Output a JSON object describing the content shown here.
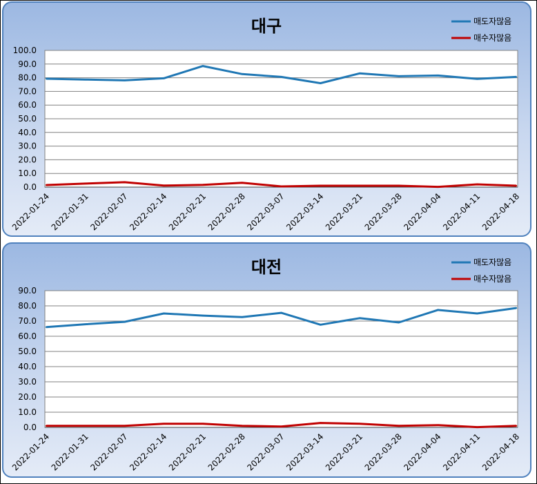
{
  "colors": {
    "sell": "#1f77b4",
    "buy": "#c00000"
  },
  "chart_data": [
    {
      "type": "line",
      "title": "대구",
      "x": [
        "2022-01-24",
        "2022-01-31",
        "2022-02-07",
        "2022-02-14",
        "2022-02-21",
        "2022-02-28",
        "2022-03-07",
        "2022-03-14",
        "2022-03-21",
        "2022-03-28",
        "2022-04-04",
        "2022-04-11",
        "2022-04-18"
      ],
      "yticks": [
        "0.0",
        "10.0",
        "20.0",
        "30.0",
        "40.0",
        "50.0",
        "60.0",
        "70.0",
        "80.0",
        "90.0",
        "100.0"
      ],
      "ylim": [
        0,
        100
      ],
      "grid": true,
      "legend_position": "top-right",
      "series": [
        {
          "name": "매도자많음",
          "color": "#1f77b4",
          "values": [
            79.3,
            78.7,
            78.1,
            79.6,
            88.6,
            82.7,
            80.6,
            76.0,
            83.2,
            81.1,
            81.6,
            79.2,
            80.6
          ]
        },
        {
          "name": "매수자많음",
          "color": "#c00000",
          "values": [
            1.5,
            2.6,
            3.6,
            1.1,
            1.6,
            3.2,
            0.5,
            1.0,
            1.0,
            1.0,
            0.2,
            2.0,
            1.0
          ]
        }
      ]
    },
    {
      "type": "line",
      "title": "대전",
      "x": [
        "2022-01-24",
        "2022-01-31",
        "2022-02-07",
        "2022-02-14",
        "2022-02-21",
        "2022-02-28",
        "2022-03-07",
        "2022-03-14",
        "2022-03-21",
        "2022-03-28",
        "2022-04-04",
        "2022-04-11",
        "2022-04-18"
      ],
      "yticks": [
        "0.0",
        "10.0",
        "20.0",
        "30.0",
        "40.0",
        "50.0",
        "60.0",
        "70.0",
        "80.0",
        "90.0"
      ],
      "ylim": [
        0,
        90
      ],
      "grid": true,
      "legend_position": "top-right",
      "series": [
        {
          "name": "매도자많음",
          "color": "#1f77b4",
          "values": [
            66.0,
            67.9,
            69.5,
            75.0,
            73.6,
            72.6,
            75.4,
            67.6,
            71.9,
            69.1,
            77.3,
            75.0,
            78.6
          ]
        },
        {
          "name": "매수자많음",
          "color": "#c00000",
          "values": [
            1.0,
            1.0,
            1.0,
            2.4,
            2.4,
            1.0,
            0.6,
            2.9,
            2.4,
            1.0,
            1.5,
            0.2,
            1.0
          ]
        }
      ]
    }
  ]
}
